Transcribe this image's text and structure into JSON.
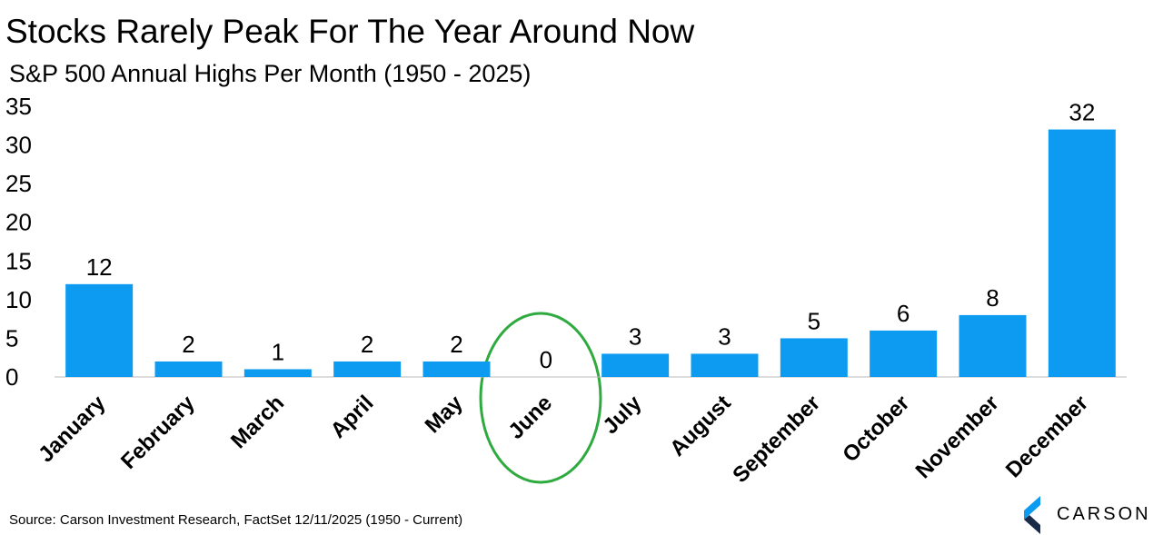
{
  "chart_data": {
    "type": "bar",
    "title": "Stocks Rarely Peak For The Year Around Now",
    "subtitle": "S&P 500 Annual Highs Per Month (1950 - 2025)",
    "source": "Source: Carson Investment Research, FactSet 12/11/2025 (1950 - Current)",
    "categories": [
      "January",
      "February",
      "March",
      "April",
      "May",
      "June",
      "July",
      "August",
      "September",
      "October",
      "November",
      "December"
    ],
    "values": [
      12,
      2,
      1,
      2,
      2,
      0,
      3,
      3,
      5,
      6,
      8,
      32
    ],
    "color": "#0d9bf2",
    "ylim": [
      0,
      35
    ],
    "yticks": [
      0,
      5,
      10,
      15,
      20,
      25,
      30,
      35
    ],
    "grid": false
  },
  "logo": {
    "text": "CARSON"
  }
}
